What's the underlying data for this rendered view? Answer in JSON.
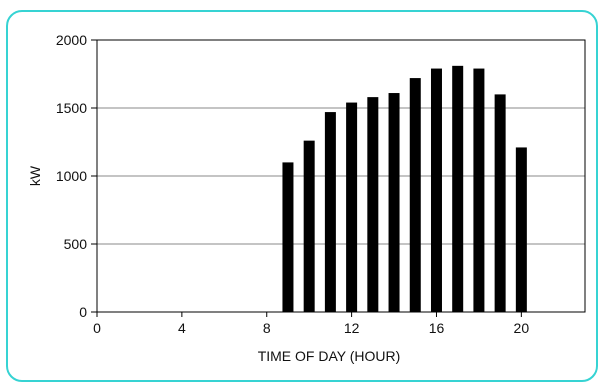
{
  "colors": {
    "frame_border": "#36d3d3",
    "bar": "#000000",
    "grid": "#888888",
    "axis": "#000000"
  },
  "chart_data": {
    "type": "bar",
    "title": "",
    "xlabel": "TIME OF DAY (HOUR)",
    "ylabel": "kW",
    "xlim": [
      0,
      23
    ],
    "ylim": [
      0,
      2000
    ],
    "x_ticks": [
      0,
      4,
      8,
      12,
      16,
      20
    ],
    "y_ticks": [
      0,
      500,
      1000,
      1500,
      2000
    ],
    "grid": "horizontal",
    "x": [
      9,
      10,
      11,
      12,
      13,
      14,
      15,
      16,
      17,
      18,
      19,
      20
    ],
    "values": [
      1100,
      1260,
      1470,
      1540,
      1580,
      1610,
      1720,
      1790,
      1810,
      1790,
      1600,
      1210
    ]
  }
}
